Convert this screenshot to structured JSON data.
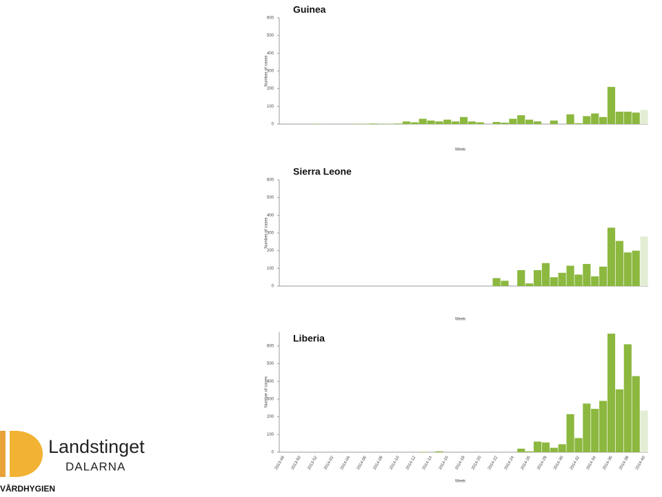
{
  "chart_data": [
    {
      "type": "bar",
      "title": "Guinea",
      "ylabel": "Number of cases",
      "xlabel": "Week",
      "values": [
        0,
        0,
        0,
        0,
        2,
        0,
        0,
        0,
        0,
        2,
        2,
        3,
        2,
        2,
        3,
        15,
        10,
        30,
        20,
        15,
        25,
        15,
        40,
        15,
        10,
        0,
        12,
        8,
        30,
        50,
        25,
        15,
        0,
        20,
        0,
        55,
        5,
        45,
        60,
        40,
        210,
        70,
        70,
        65,
        80
      ],
      "ylim": [
        0,
        600
      ],
      "yticks": [
        0,
        100,
        200,
        300,
        400,
        500,
        600
      ],
      "color": "#8cb83f",
      "last_color": "#e3edd4"
    },
    {
      "type": "bar",
      "title": "Sierra Leone",
      "ylabel": "Number of cases",
      "xlabel": "Week",
      "values": [
        0,
        0,
        0,
        0,
        0,
        0,
        0,
        0,
        0,
        0,
        0,
        0,
        0,
        0,
        0,
        0,
        0,
        0,
        0,
        0,
        0,
        0,
        0,
        0,
        0,
        0,
        45,
        30,
        0,
        90,
        15,
        90,
        130,
        50,
        75,
        115,
        65,
        125,
        55,
        110,
        330,
        255,
        190,
        200,
        280
      ],
      "ylim": [
        0,
        600
      ],
      "yticks": [
        0,
        100,
        200,
        300,
        400,
        500,
        600
      ],
      "color": "#8cb83f",
      "last_color": "#e3edd4"
    },
    {
      "type": "bar",
      "title": "Liberia",
      "ylabel": "Number of cases",
      "xlabel": "Week",
      "categories": [
        "2013-48",
        null,
        "2013-50",
        null,
        "2013-52",
        null,
        "2014-02",
        null,
        "2014-04",
        null,
        "2014-06",
        null,
        "2014-08",
        null,
        "2014-10",
        null,
        "2014-12",
        null,
        "2014-14",
        null,
        "2014-16",
        null,
        "2014-18",
        null,
        "2014-20",
        null,
        "2014-22",
        null,
        "2014-24",
        null,
        "2014-26",
        null,
        "2014-28",
        null,
        "2014-30",
        null,
        "2014-32",
        null,
        "2014-34",
        null,
        "2014-36",
        null,
        "2014-38",
        null,
        "2014-40"
      ],
      "values": [
        0,
        0,
        0,
        0,
        0,
        0,
        0,
        0,
        0,
        0,
        0,
        0,
        0,
        0,
        0,
        0,
        0,
        2,
        0,
        5,
        0,
        0,
        0,
        0,
        0,
        0,
        0,
        0,
        0,
        20,
        5,
        60,
        55,
        25,
        45,
        215,
        80,
        275,
        245,
        290,
        670,
        355,
        610,
        430,
        235
      ],
      "ylim": [
        0,
        680
      ],
      "yticks": [
        0,
        100,
        200,
        300,
        400,
        500,
        600
      ],
      "color": "#8cb83f",
      "last_color": "#e3edd4"
    }
  ],
  "logo": {
    "name": "Landstinget",
    "region": "DALARNA",
    "unit": "VÅRDHYGIEN"
  }
}
